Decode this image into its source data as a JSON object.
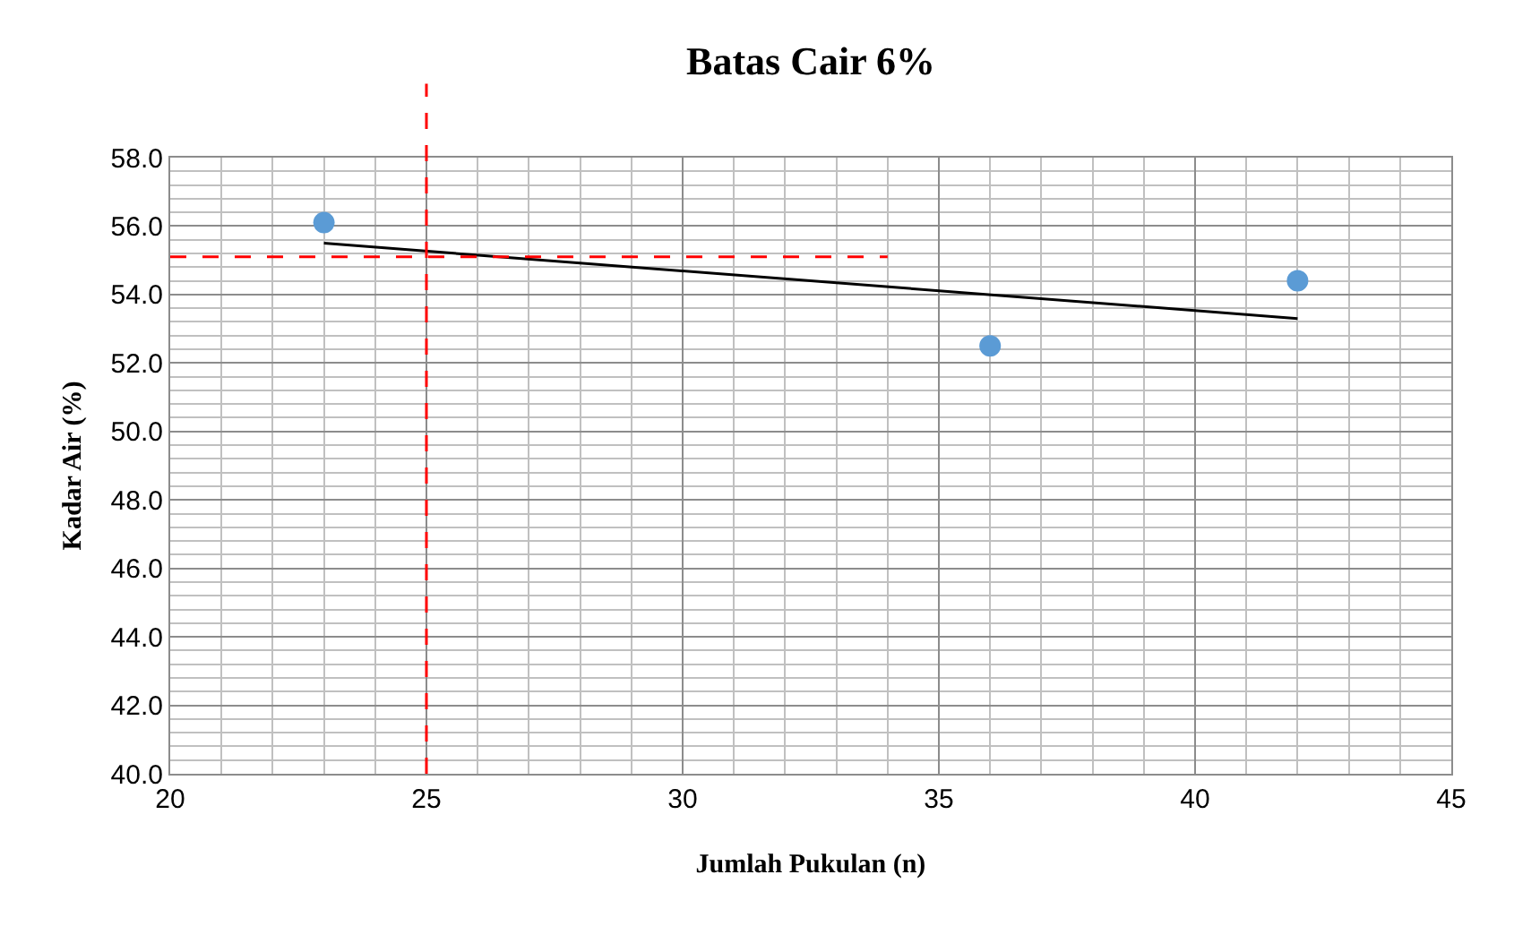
{
  "chart_data": {
    "type": "scatter",
    "title": "Batas Cair 6%",
    "xlabel": "Jumlah Pukulan (n)",
    "ylabel": "Kadar Air (%)",
    "x": [
      23,
      36,
      42
    ],
    "series": [
      {
        "color": "#5b9bd5",
        "marker": "circle",
        "values": [
          56.1,
          52.5,
          54.4
        ]
      },
      {
        "type": "line",
        "color": "#000000",
        "marker": "none",
        "x": [
          23,
          42
        ],
        "values": [
          55.5,
          53.3
        ]
      },
      {
        "type": "line",
        "color": "#ff0000",
        "marker": "none",
        "line_style": "dashed",
        "x": [
          20,
          34
        ],
        "values": [
          55.1,
          55.1
        ]
      }
    ],
    "ref_lines": [
      {
        "axis": "x",
        "value": 25,
        "color": "#ff0000",
        "line_style": "dashed"
      }
    ],
    "xlim": [
      20,
      45
    ],
    "xticks": [
      20,
      25,
      30,
      35,
      40,
      45
    ],
    "ylim": [
      40,
      58
    ],
    "yticks": [
      {
        "value": 40,
        "label": "40.0"
      },
      {
        "value": 42,
        "label": "42.0"
      },
      {
        "value": 44,
        "label": "44.0"
      },
      {
        "value": 46,
        "label": "46.0"
      },
      {
        "value": 48,
        "label": "48.0"
      },
      {
        "value": 50,
        "label": "50.0"
      },
      {
        "value": 52,
        "label": "52.0"
      },
      {
        "value": 54,
        "label": "54.0"
      },
      {
        "value": 56,
        "label": "56.0"
      },
      {
        "value": 58,
        "label": "58.0"
      }
    ],
    "grid": true
  }
}
